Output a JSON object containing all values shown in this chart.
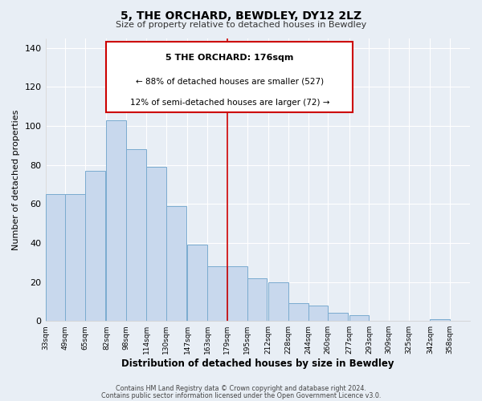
{
  "title": "5, THE ORCHARD, BEWDLEY, DY12 2LZ",
  "subtitle": "Size of property relative to detached houses in Bewdley",
  "xlabel": "Distribution of detached houses by size in Bewdley",
  "ylabel": "Number of detached properties",
  "bar_left_edges": [
    33,
    49,
    65,
    82,
    98,
    114,
    130,
    147,
    163,
    179,
    195,
    212,
    228,
    244,
    260,
    277,
    293,
    309,
    325,
    342
  ],
  "bar_heights": [
    65,
    65,
    77,
    103,
    88,
    79,
    59,
    39,
    28,
    28,
    22,
    20,
    9,
    8,
    4,
    3,
    0,
    0,
    0,
    1
  ],
  "bar_widths": [
    16,
    16,
    16,
    16,
    16,
    16,
    16,
    16,
    16,
    16,
    16,
    16,
    16,
    16,
    16,
    16,
    16,
    16,
    16,
    16
  ],
  "tick_labels": [
    "33sqm",
    "49sqm",
    "65sqm",
    "82sqm",
    "98sqm",
    "114sqm",
    "130sqm",
    "147sqm",
    "163sqm",
    "179sqm",
    "195sqm",
    "212sqm",
    "228sqm",
    "244sqm",
    "260sqm",
    "277sqm",
    "293sqm",
    "309sqm",
    "325sqm",
    "342sqm",
    "358sqm"
  ],
  "tick_positions": [
    33,
    49,
    65,
    82,
    98,
    114,
    130,
    147,
    163,
    179,
    195,
    212,
    228,
    244,
    260,
    277,
    293,
    309,
    325,
    342,
    358
  ],
  "bar_color": "#c8d8ed",
  "bar_edgecolor": "#7aabcf",
  "marker_x": 179,
  "marker_color": "#cc0000",
  "ylim": [
    0,
    145
  ],
  "xlim_left": 33,
  "xlim_right": 374,
  "yticks": [
    0,
    20,
    40,
    60,
    80,
    100,
    120,
    140
  ],
  "annotation_title": "5 THE ORCHARD: 176sqm",
  "annotation_line1": "← 88% of detached houses are smaller (527)",
  "annotation_line2": "12% of semi-detached houses are larger (72) →",
  "footer1": "Contains HM Land Registry data © Crown copyright and database right 2024.",
  "footer2": "Contains public sector information licensed under the Open Government Licence v3.0.",
  "bg_color": "#e8eef5",
  "grid_color": "#ffffff",
  "annotation_box_facecolor": "#ffffff",
  "annotation_box_edgecolor": "#cc0000"
}
